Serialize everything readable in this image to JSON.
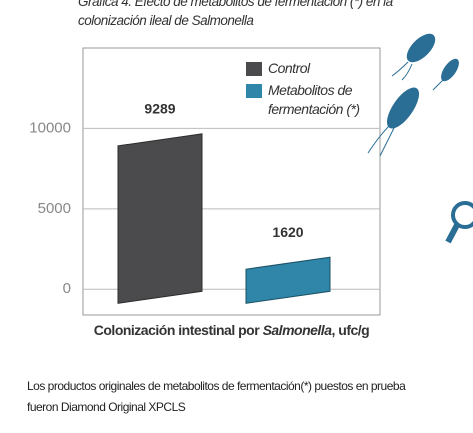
{
  "chart_data": {
    "type": "bar",
    "title": "Gráfica 4. Efecto de metabolitos de fermentación (*) en la colonización ileal de Salmonella",
    "xlabel_parts": [
      "Colonización intestinal por ",
      "Salmonella",
      ", ufc/g"
    ],
    "categories": [
      null
    ],
    "series": [
      {
        "name": "Control",
        "color": "#4b4b4d",
        "values": [
          9289
        ]
      },
      {
        "name": "Metabolitos de fermentación (*)",
        "color": "#2f86a8",
        "values": [
          1620
        ]
      }
    ],
    "ylim": [
      -1600,
      15000
    ],
    "yticks": [
      0,
      5000,
      10000
    ],
    "grid": true,
    "legend": "upper right",
    "note": "Los productos originales de metabolitos de fermentación(*) puestos en prueba fueron Diamond Original XPCLS"
  }
}
